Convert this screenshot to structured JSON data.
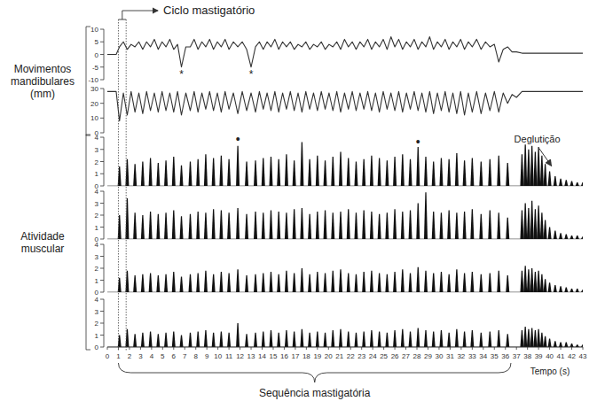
{
  "chart_data": [
    {
      "type": "line",
      "color": "#333333",
      "xlim": [
        0,
        43
      ],
      "ylim": [
        -10,
        10
      ],
      "yticks": [
        -10,
        -5,
        0,
        5,
        10
      ],
      "tick_labels": "y",
      "x": [
        0,
        0.8,
        1.1,
        1.45,
        1.8,
        2.15,
        2.5,
        2.85,
        3.2,
        3.55,
        3.9,
        4.25,
        4.6,
        4.95,
        5.3,
        5.65,
        6.0,
        6.35,
        6.7,
        7.1,
        7.5,
        7.85,
        8.2,
        8.55,
        8.9,
        9.25,
        9.6,
        9.95,
        10.3,
        10.65,
        11.0,
        11.4,
        11.8,
        12.2,
        12.6,
        13.0,
        13.4,
        13.75,
        14.1,
        14.45,
        14.8,
        15.15,
        15.5,
        15.85,
        16.2,
        16.55,
        16.9,
        17.25,
        17.6,
        17.95,
        18.3,
        18.65,
        19.0,
        19.35,
        19.7,
        20.05,
        20.4,
        20.75,
        21.1,
        21.45,
        21.8,
        22.15,
        22.5,
        22.85,
        23.2,
        23.55,
        23.9,
        24.25,
        24.6,
        24.95,
        25.3,
        25.65,
        26.0,
        26.35,
        26.7,
        27.05,
        27.4,
        27.75,
        28.1,
        28.45,
        28.8,
        29.15,
        29.5,
        29.85,
        30.2,
        30.55,
        30.9,
        31.25,
        31.6,
        31.95,
        32.3,
        32.65,
        33.0,
        33.4,
        33.8,
        34.2,
        34.6,
        35.0,
        35.4,
        35.8,
        36.2,
        36.6,
        37.0,
        37.5,
        38.0,
        43.0
      ],
      "values": [
        0,
        0,
        3,
        5,
        2,
        4,
        3,
        5,
        2,
        5,
        3,
        6,
        2,
        5,
        3,
        6,
        2,
        4,
        -5,
        3,
        3,
        6,
        2,
        5,
        3,
        6,
        2,
        5,
        3,
        6,
        2,
        5,
        3,
        5,
        2,
        -5,
        3,
        5,
        2,
        5,
        3,
        6,
        2,
        5,
        3,
        5,
        2,
        4,
        3,
        5,
        2,
        4,
        3,
        5,
        2,
        4,
        3,
        5,
        2,
        6,
        3,
        5,
        2,
        5,
        3,
        6,
        2,
        5,
        3,
        6,
        2,
        7,
        3,
        6,
        2,
        5,
        3,
        6,
        2,
        5,
        3,
        7,
        2,
        5,
        3,
        6,
        2,
        5,
        3,
        6,
        2,
        5,
        3,
        6,
        2,
        5,
        3,
        4,
        -3,
        2,
        3,
        1,
        1,
        0.5,
        0.5,
        0.5
      ],
      "annotations": [
        {
          "text": "*",
          "x": 6.7,
          "y": -8
        },
        {
          "text": "*",
          "x": 13.0,
          "y": -8
        }
      ]
    },
    {
      "type": "line",
      "color": "#333333",
      "xlim": [
        0,
        43
      ],
      "ylim": [
        0,
        30
      ],
      "yticks": [
        0,
        10,
        20,
        30
      ],
      "tick_labels": "y",
      "x": [
        0,
        0.8,
        1.1,
        1.45,
        1.8,
        2.15,
        2.5,
        2.85,
        3.2,
        3.55,
        3.9,
        4.25,
        4.6,
        4.95,
        5.3,
        5.65,
        6.0,
        6.35,
        6.7,
        7.1,
        7.5,
        7.85,
        8.2,
        8.55,
        8.9,
        9.25,
        9.6,
        9.95,
        10.3,
        10.65,
        11.0,
        11.4,
        11.8,
        12.2,
        12.6,
        13.0,
        13.4,
        13.75,
        14.1,
        14.45,
        14.8,
        15.15,
        15.5,
        15.85,
        16.2,
        16.55,
        16.9,
        17.25,
        17.6,
        17.95,
        18.3,
        18.65,
        19.0,
        19.35,
        19.7,
        20.05,
        20.4,
        20.75,
        21.1,
        21.45,
        21.8,
        22.15,
        22.5,
        22.85,
        23.2,
        23.55,
        23.9,
        24.25,
        24.6,
        24.95,
        25.3,
        25.65,
        26.0,
        26.35,
        26.7,
        27.05,
        27.4,
        27.75,
        28.1,
        28.45,
        28.8,
        29.15,
        29.5,
        29.85,
        30.2,
        30.55,
        30.9,
        31.25,
        31.6,
        31.95,
        32.3,
        32.65,
        33.0,
        33.4,
        33.8,
        34.2,
        34.6,
        35.0,
        35.4,
        35.8,
        36.2,
        36.6,
        37.0,
        37.5,
        38.0,
        43.0
      ],
      "values": [
        28,
        28,
        8,
        27,
        12,
        28,
        14,
        27,
        13,
        28,
        15,
        27,
        14,
        28,
        15,
        27,
        14,
        28,
        12,
        27,
        15,
        28,
        14,
        27,
        16,
        28,
        15,
        27,
        14,
        28,
        16,
        27,
        13,
        28,
        15,
        27,
        14,
        28,
        16,
        27,
        15,
        28,
        14,
        27,
        16,
        28,
        15,
        27,
        14,
        28,
        16,
        27,
        15,
        28,
        16,
        27,
        15,
        28,
        14,
        27,
        16,
        28,
        15,
        27,
        16,
        28,
        15,
        27,
        14,
        28,
        16,
        27,
        15,
        28,
        14,
        27,
        16,
        28,
        15,
        27,
        14,
        28,
        13,
        27,
        15,
        28,
        14,
        27,
        13,
        28,
        12,
        27,
        14,
        28,
        13,
        27,
        15,
        28,
        14,
        27,
        20,
        26,
        24,
        28,
        28,
        28
      ]
    },
    {
      "type": "bar",
      "color": "#111111",
      "xlim": [
        0,
        43
      ],
      "ylim": [
        0,
        4
      ],
      "yticks": [
        0,
        1,
        2,
        3,
        4
      ],
      "tick_labels": "y",
      "x": [
        1.1,
        1.8,
        2.5,
        3.2,
        3.9,
        4.6,
        5.3,
        6.0,
        6.7,
        7.5,
        8.2,
        8.9,
        9.6,
        10.3,
        11.0,
        11.8,
        12.6,
        13.4,
        14.1,
        14.8,
        15.5,
        16.2,
        16.9,
        17.6,
        18.3,
        19.0,
        19.7,
        20.4,
        21.1,
        21.8,
        22.5,
        23.2,
        23.9,
        24.6,
        25.3,
        26.0,
        26.7,
        27.4,
        28.1,
        28.8,
        29.5,
        30.2,
        30.9,
        31.6,
        32.3,
        33.0,
        33.8,
        34.6,
        35.4,
        36.2,
        37.5,
        37.8,
        38.1,
        38.4,
        38.7,
        39.0,
        39.3,
        39.6,
        40.0,
        40.5,
        41.0,
        41.5,
        42.0,
        42.5,
        43.0
      ],
      "values": [
        1.6,
        2.2,
        1.8,
        2.0,
        2.3,
        1.9,
        2.1,
        2.4,
        1.7,
        2.0,
        2.2,
        2.6,
        2.3,
        2.5,
        2.2,
        3.3,
        2.0,
        2.1,
        2.3,
        2.4,
        2.2,
        2.6,
        2.1,
        3.6,
        2.2,
        2.5,
        2.1,
        2.4,
        2.8,
        2.3,
        2.0,
        2.2,
        2.5,
        2.3,
        2.1,
        2.4,
        2.6,
        2.2,
        3.2,
        2.4,
        2.0,
        2.3,
        2.2,
        2.7,
        2.1,
        2.3,
        2.0,
        2.2,
        2.5,
        1.9,
        2.6,
        3.4,
        3.0,
        3.3,
        2.8,
        3.2,
        2.5,
        1.8,
        1.2,
        0.8,
        0.6,
        0.5,
        0.4,
        0.3,
        0.3
      ],
      "annotations": [
        {
          "text": "•",
          "x": 11.8,
          "y": 3.8
        },
        {
          "text": "•",
          "x": 28.1,
          "y": 3.6
        },
        {
          "text": "Deglutição",
          "x": 40.0,
          "y": 1.5
        }
      ]
    },
    {
      "type": "bar",
      "color": "#111111",
      "xlim": [
        0,
        43
      ],
      "ylim": [
        0,
        4
      ],
      "yticks": [
        0,
        1,
        2,
        3,
        4
      ],
      "tick_labels": "y",
      "x": [
        1.1,
        1.8,
        2.5,
        3.2,
        3.9,
        4.6,
        5.3,
        6.0,
        6.7,
        7.5,
        8.2,
        8.9,
        9.6,
        10.3,
        11.0,
        11.8,
        12.6,
        13.4,
        14.1,
        14.8,
        15.5,
        16.2,
        16.9,
        17.6,
        18.3,
        19.0,
        19.7,
        20.4,
        21.1,
        21.8,
        22.5,
        23.2,
        23.9,
        24.6,
        25.3,
        26.0,
        26.7,
        27.4,
        28.1,
        28.8,
        29.5,
        30.2,
        30.9,
        31.6,
        32.3,
        33.0,
        33.8,
        34.6,
        35.4,
        36.2,
        37.5,
        37.8,
        38.1,
        38.4,
        38.7,
        39.0,
        39.3,
        39.6,
        40.0,
        40.5,
        41.0,
        41.5,
        42.0,
        42.5,
        43.0
      ],
      "values": [
        2.0,
        3.4,
        2.2,
        2.0,
        2.3,
        2.1,
        2.2,
        2.4,
        1.9,
        2.1,
        2.3,
        2.2,
        2.5,
        2.4,
        2.2,
        2.6,
        2.1,
        2.3,
        2.2,
        2.4,
        2.3,
        2.2,
        2.5,
        2.6,
        2.1,
        2.3,
        2.4,
        2.2,
        2.3,
        2.5,
        2.2,
        2.4,
        2.3,
        2.1,
        2.2,
        2.5,
        2.3,
        2.4,
        3.0,
        3.9,
        2.3,
        2.2,
        2.4,
        2.2,
        2.3,
        2.5,
        2.1,
        2.4,
        2.2,
        1.8,
        2.4,
        3.0,
        2.6,
        3.2,
        2.5,
        2.8,
        2.2,
        1.6,
        1.0,
        0.7,
        0.5,
        0.4,
        0.3,
        0.3,
        0.2
      ]
    },
    {
      "type": "bar",
      "color": "#111111",
      "xlim": [
        0,
        43
      ],
      "ylim": [
        0,
        4
      ],
      "yticks": [
        0,
        1,
        2,
        3,
        4
      ],
      "tick_labels": "y",
      "x": [
        1.1,
        1.8,
        2.5,
        3.2,
        3.9,
        4.6,
        5.3,
        6.0,
        6.7,
        7.5,
        8.2,
        8.9,
        9.6,
        10.3,
        11.0,
        11.8,
        12.6,
        13.4,
        14.1,
        14.8,
        15.5,
        16.2,
        16.9,
        17.6,
        18.3,
        19.0,
        19.7,
        20.4,
        21.1,
        21.8,
        22.5,
        23.2,
        23.9,
        24.6,
        25.3,
        26.0,
        26.7,
        27.4,
        28.1,
        28.8,
        29.5,
        30.2,
        30.9,
        31.6,
        32.3,
        33.0,
        33.8,
        34.6,
        35.4,
        36.2,
        37.5,
        37.8,
        38.1,
        38.4,
        38.7,
        39.0,
        39.3,
        39.6,
        40.0,
        40.5,
        41.0,
        41.5,
        42.0,
        42.5,
        43.0
      ],
      "values": [
        1.2,
        1.8,
        1.4,
        1.5,
        1.6,
        1.4,
        1.5,
        1.7,
        1.3,
        1.5,
        1.6,
        1.8,
        1.5,
        1.7,
        1.6,
        1.9,
        1.4,
        1.5,
        1.6,
        1.7,
        1.5,
        1.8,
        1.6,
        2.0,
        1.5,
        1.7,
        1.6,
        1.8,
        1.9,
        1.6,
        1.5,
        1.7,
        1.8,
        1.6,
        1.5,
        1.7,
        1.9,
        1.6,
        2.1,
        1.8,
        1.6,
        1.7,
        1.5,
        1.9,
        1.6,
        1.7,
        1.5,
        1.6,
        1.8,
        1.4,
        1.8,
        2.2,
        1.9,
        2.0,
        1.7,
        1.8,
        1.5,
        1.1,
        0.8,
        0.6,
        0.5,
        0.4,
        0.3,
        0.3,
        0.2
      ]
    },
    {
      "type": "bar",
      "color": "#111111",
      "xlim": [
        0,
        43
      ],
      "ylim": [
        0,
        4
      ],
      "yticks": [
        0,
        1,
        2,
        3,
        4
      ],
      "tick_labels": true,
      "xticks": [
        0,
        1,
        2,
        3,
        4,
        5,
        6,
        7,
        8,
        9,
        10,
        11,
        12,
        13,
        14,
        15,
        16,
        17,
        18,
        19,
        20,
        21,
        22,
        23,
        24,
        25,
        26,
        27,
        28,
        29,
        30,
        31,
        32,
        33,
        34,
        35,
        36,
        37,
        38,
        39,
        40,
        41,
        42,
        43
      ],
      "xlabel": "Tempo (s)",
      "x": [
        1.1,
        1.8,
        2.5,
        3.2,
        3.9,
        4.6,
        5.3,
        6.0,
        6.7,
        7.5,
        8.2,
        8.9,
        9.6,
        10.3,
        11.0,
        11.8,
        12.6,
        13.4,
        14.1,
        14.8,
        15.5,
        16.2,
        16.9,
        17.6,
        18.3,
        19.0,
        19.7,
        20.4,
        21.1,
        21.8,
        22.5,
        23.2,
        23.9,
        24.6,
        25.3,
        26.0,
        26.7,
        27.4,
        28.1,
        28.8,
        29.5,
        30.2,
        30.9,
        31.6,
        32.3,
        33.0,
        33.8,
        34.6,
        35.4,
        36.2,
        37.5,
        37.8,
        38.1,
        38.4,
        38.7,
        39.0,
        39.3,
        39.6,
        40.0,
        40.5,
        41.0,
        41.5,
        42.0,
        42.5,
        43.0
      ],
      "values": [
        1.0,
        1.5,
        1.1,
        1.2,
        1.3,
        1.1,
        1.2,
        1.3,
        1.0,
        1.2,
        1.3,
        1.4,
        1.2,
        1.3,
        1.2,
        2.0,
        1.1,
        1.2,
        1.3,
        1.4,
        1.2,
        1.4,
        1.3,
        1.5,
        1.2,
        1.3,
        1.2,
        1.4,
        1.5,
        1.3,
        1.2,
        1.3,
        1.4,
        1.3,
        1.2,
        1.4,
        1.5,
        1.3,
        1.6,
        1.4,
        1.3,
        1.4,
        1.2,
        1.5,
        1.3,
        1.4,
        1.2,
        1.3,
        1.4,
        1.1,
        1.4,
        1.7,
        1.5,
        1.6,
        1.4,
        1.5,
        1.2,
        0.9,
        0.7,
        0.5,
        0.4,
        0.4,
        0.3,
        0.2,
        0.2
      ]
    }
  ],
  "ylabel_groups": [
    {
      "label": "Movimentos mandibulares (mm)"
    },
    {
      "label": "Atividade muscular"
    }
  ],
  "cycle": {
    "label": "Ciclo mastigatório",
    "x": [
      1.0,
      1.7
    ]
  },
  "sequence": {
    "label": "Sequência mastigatória",
    "x": [
      1.0,
      36.5
    ]
  }
}
